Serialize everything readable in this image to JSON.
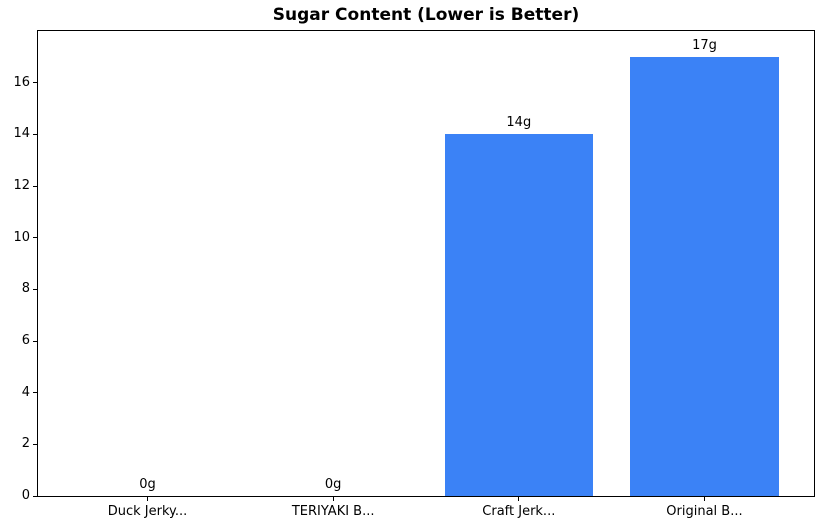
{
  "chart_data": {
    "type": "bar",
    "title": "Sugar Content (Lower is Better)",
    "categories": [
      "Duck Jerky...",
      "TERIYAKI B...",
      "Craft Jerk...",
      "Original B..."
    ],
    "values": [
      0,
      0,
      14,
      17
    ],
    "bar_labels": [
      "0g",
      "0g",
      "14g",
      "17g"
    ],
    "yticks": [
      0,
      2,
      4,
      6,
      8,
      10,
      12,
      14,
      16
    ],
    "ylim": [
      0,
      18
    ],
    "xlabel": "",
    "ylabel": "",
    "grid": false,
    "legend": "none",
    "bar_color": "#3b82f6",
    "axis_color": "#000000",
    "text_color": "#000000",
    "background_color": "#ffffff"
  }
}
